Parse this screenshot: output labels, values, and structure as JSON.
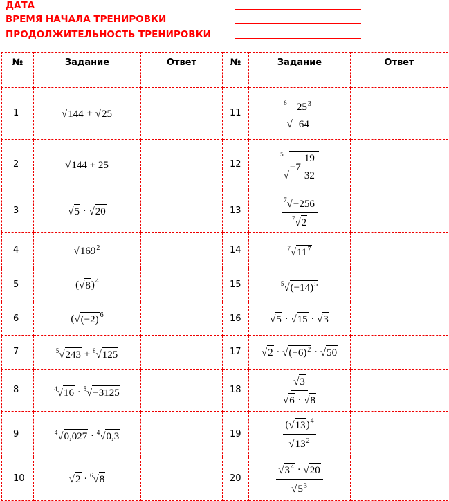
{
  "header": {
    "labels": [
      "ДАТА",
      "ВРЕМЯ НАЧАЛА ТРЕНИРОВКИ",
      "ПРОДОЛЖИТЕЛЬНОСТЬ ТРЕНИРОВКИ"
    ],
    "accent": "#ff0000"
  },
  "table": {
    "columns": [
      "№",
      "Задание",
      "Ответ",
      "№",
      "Задание",
      "Ответ"
    ],
    "rows": [
      {
        "left": {
          "n": "1",
          "expr": [
            {
              "root": [
                "144"
              ]
            },
            " + ",
            {
              "root": [
                "25"
              ]
            }
          ]
        },
        "right": {
          "n": "11",
          "expr": [
            {
              "root": [
                {
                  "num": [
                    "25",
                    {
                      "sup": "3"
                    }
                  ],
                  "den": [
                    "64"
                  ]
                }
              ],
              "idx": "6"
            }
          ]
        }
      },
      {
        "left": {
          "n": "2",
          "expr": [
            {
              "root": [
                "144 + 25"
              ]
            }
          ]
        },
        "right": {
          "n": "12",
          "expr": [
            {
              "root": [
                "−7",
                {
                  "num": [
                    "19"
                  ],
                  "den": [
                    "32"
                  ]
                }
              ],
              "idx": "5"
            }
          ]
        }
      },
      {
        "left": {
          "n": "3",
          "expr": [
            {
              "root": [
                "5"
              ]
            },
            " · ",
            {
              "root": [
                "20"
              ]
            }
          ]
        },
        "right": {
          "n": "13",
          "expr": [
            {
              "num": [
                {
                  "root": [
                    "−256"
                  ],
                  "idx": "7"
                }
              ],
              "den": [
                {
                  "root": [
                    "2"
                  ],
                  "idx": "7"
                }
              ]
            }
          ]
        }
      },
      {
        "left": {
          "n": "4",
          "expr": [
            {
              "root": [
                "169",
                {
                  "sup": "2"
                }
              ]
            }
          ]
        },
        "right": {
          "n": "14",
          "expr": [
            {
              "root": [
                "11",
                {
                  "sup": "7"
                }
              ],
              "idx": "7"
            }
          ]
        }
      },
      {
        "left": {
          "n": "5",
          "expr": [
            "(",
            {
              "root": [
                "8"
              ]
            },
            ")",
            {
              "sup": "4"
            }
          ]
        },
        "right": {
          "n": "15",
          "expr": [
            {
              "root": [
                "(−14)",
                {
                  "sup": "5"
                }
              ],
              "idx": "5"
            }
          ]
        }
      },
      {
        "left": {
          "n": "6",
          "expr": [
            "(",
            {
              "root": [
                "(−2)"
              ]
            },
            {
              "sup": "6"
            }
          ]
        },
        "right": {
          "n": "16",
          "expr": [
            {
              "root": [
                "5"
              ]
            },
            " · ",
            {
              "root": [
                "15"
              ]
            },
            " · ",
            {
              "root": [
                "3"
              ]
            }
          ]
        }
      },
      {
        "left": {
          "n": "7",
          "expr": [
            {
              "root": [
                "243"
              ],
              "idx": "5"
            },
            " + ",
            {
              "root": [
                "125"
              ],
              "idx": "8"
            }
          ]
        },
        "right": {
          "n": "17",
          "expr": [
            {
              "root": [
                "2"
              ]
            },
            " · ",
            {
              "root": [
                "(−6)",
                {
                  "sup": "2"
                }
              ]
            },
            " · ",
            {
              "root": [
                "50"
              ]
            }
          ]
        }
      },
      {
        "left": {
          "n": "8",
          "expr": [
            {
              "root": [
                "16"
              ],
              "idx": "4"
            },
            " · ",
            {
              "root": [
                "−3125"
              ],
              "idx": "5"
            }
          ]
        },
        "right": {
          "n": "18",
          "expr": [
            {
              "num": [
                {
                  "root": [
                    "3"
                  ]
                }
              ],
              "den": [
                {
                  "root": [
                    "6"
                  ]
                },
                " · ",
                {
                  "root": [
                    "8"
                  ]
                }
              ]
            }
          ]
        }
      },
      {
        "left": {
          "n": "9",
          "expr": [
            {
              "root": [
                "0,027"
              ],
              "idx": "4"
            },
            " · ",
            {
              "root": [
                "0,3"
              ],
              "idx": "4"
            }
          ]
        },
        "right": {
          "n": "19",
          "expr": [
            {
              "num": [
                "(",
                {
                  "root": [
                    "13"
                  ]
                },
                ")",
                {
                  "sup": "4"
                }
              ],
              "den": [
                {
                  "root": [
                    "13",
                    {
                      "sup": "2"
                    }
                  ]
                }
              ]
            }
          ]
        }
      },
      {
        "left": {
          "n": "10",
          "expr": [
            {
              "root": [
                "2"
              ]
            },
            " · ",
            {
              "root": [
                "8"
              ],
              "idx": "6"
            }
          ]
        },
        "right": {
          "n": "20",
          "expr": [
            {
              "num": [
                {
                  "root": [
                    "3",
                    {
                      "sup": "4"
                    }
                  ]
                },
                " · ",
                {
                  "root": [
                    "20"
                  ]
                }
              ],
              "den": [
                {
                  "root": [
                    "5",
                    {
                      "sup": "3"
                    }
                  ]
                }
              ]
            }
          ]
        }
      }
    ]
  }
}
